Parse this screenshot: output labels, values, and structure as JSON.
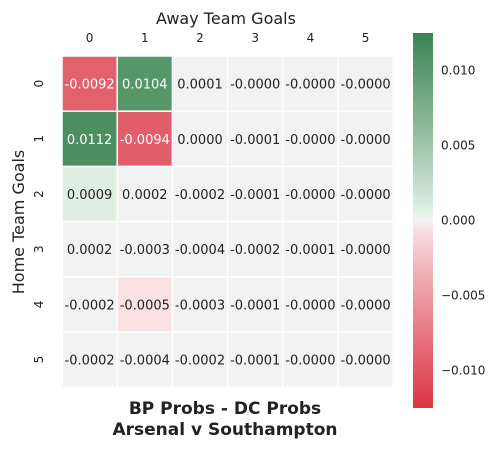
{
  "chart_data": {
    "type": "heatmap",
    "title": [
      "BP Probs - DC Probs",
      "Arsenal v Southampton"
    ],
    "xlabel": "Away Team Goals",
    "ylabel": "Home Team Goals",
    "x_categories": [
      "0",
      "1",
      "2",
      "3",
      "4",
      "5"
    ],
    "y_categories": [
      "0",
      "1",
      "2",
      "3",
      "4",
      "5"
    ],
    "values": [
      [
        -0.0092,
        0.0104,
        0.0001,
        -0.0,
        -0.0,
        -0.0
      ],
      [
        0.0112,
        -0.0094,
        0.0,
        -0.0001,
        -0.0,
        -0.0
      ],
      [
        0.0009,
        0.0002,
        -0.0002,
        -0.0001,
        -0.0,
        -0.0
      ],
      [
        0.0002,
        -0.0003,
        -0.0004,
        -0.0002,
        -0.0001,
        -0.0
      ],
      [
        -0.0002,
        -0.0005,
        -0.0003,
        -0.0001,
        -0.0,
        -0.0
      ],
      [
        -0.0002,
        -0.0004,
        -0.0002,
        -0.0001,
        -0.0,
        -0.0
      ]
    ],
    "cell_labels": [
      [
        "-0.0092",
        "0.0104",
        "0.0001",
        "-0.0000",
        "-0.0000",
        "-0.0000"
      ],
      [
        "0.0112",
        "-0.0094",
        "0.0000",
        "-0.0001",
        "-0.0000",
        "-0.0000"
      ],
      [
        "0.0009",
        "0.0002",
        "-0.0002",
        "-0.0001",
        "-0.0000",
        "-0.0000"
      ],
      [
        "0.0002",
        "-0.0003",
        "-0.0004",
        "-0.0002",
        "-0.0001",
        "-0.0000"
      ],
      [
        "-0.0002",
        "-0.0005",
        "-0.0003",
        "-0.0001",
        "-0.0000",
        "-0.0000"
      ],
      [
        "-0.0002",
        "-0.0004",
        "-0.0002",
        "-0.0001",
        "-0.0000",
        "-0.0000"
      ]
    ],
    "vmin": -0.0125,
    "vmax": 0.0125,
    "neutral_band": 0.0004,
    "colormap": {
      "low": "#dc3545",
      "mid": "#f2f2f2",
      "high": "#3b8451"
    },
    "colorbar_ticks": [
      -0.01,
      -0.005,
      0.0,
      0.005,
      0.01
    ],
    "colorbar_labels": [
      "−0.010",
      "−0.005",
      "0.000",
      "0.005",
      "0.010"
    ],
    "legend_placement": "right"
  }
}
